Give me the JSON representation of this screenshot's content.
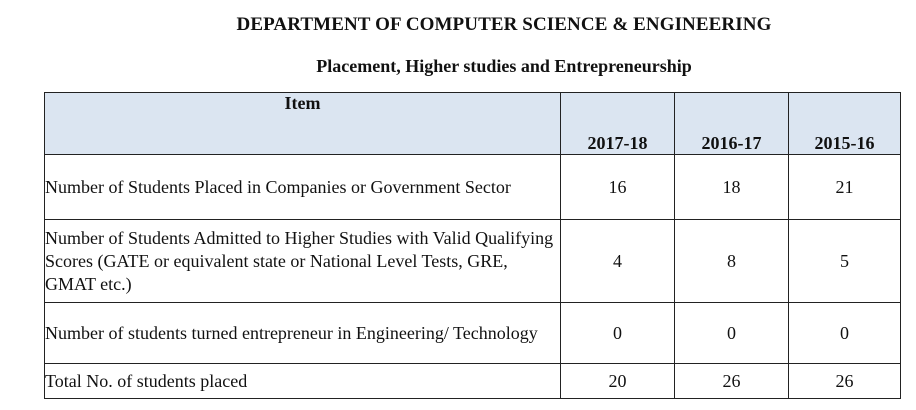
{
  "header": {
    "department": "DEPARTMENT OF COMPUTER SCIENCE & ENGINEERING",
    "subtitle": "Placement, Higher studies and Entrepreneurship"
  },
  "table": {
    "columns": [
      "Item",
      "2017-18",
      "2016-17",
      "2015-16"
    ],
    "rows": [
      {
        "item": "Number of Students Placed in Companies or Government Sector",
        "values": [
          "16",
          "18",
          "21"
        ]
      },
      {
        "item": "Number of Students Admitted to Higher Studies with Valid Qualifying Scores (GATE or equivalent state or National Level Tests, GRE, GMAT etc.)",
        "values": [
          "4",
          "8",
          "5"
        ]
      },
      {
        "item": "Number of students turned entrepreneur in Engineering/ Technology",
        "values": [
          "0",
          "0",
          "0"
        ]
      },
      {
        "item": "Total No. of students placed",
        "values": [
          "20",
          "26",
          "26"
        ]
      }
    ]
  },
  "colors": {
    "header_fill": "#dbe5f1",
    "border": "#222222"
  }
}
